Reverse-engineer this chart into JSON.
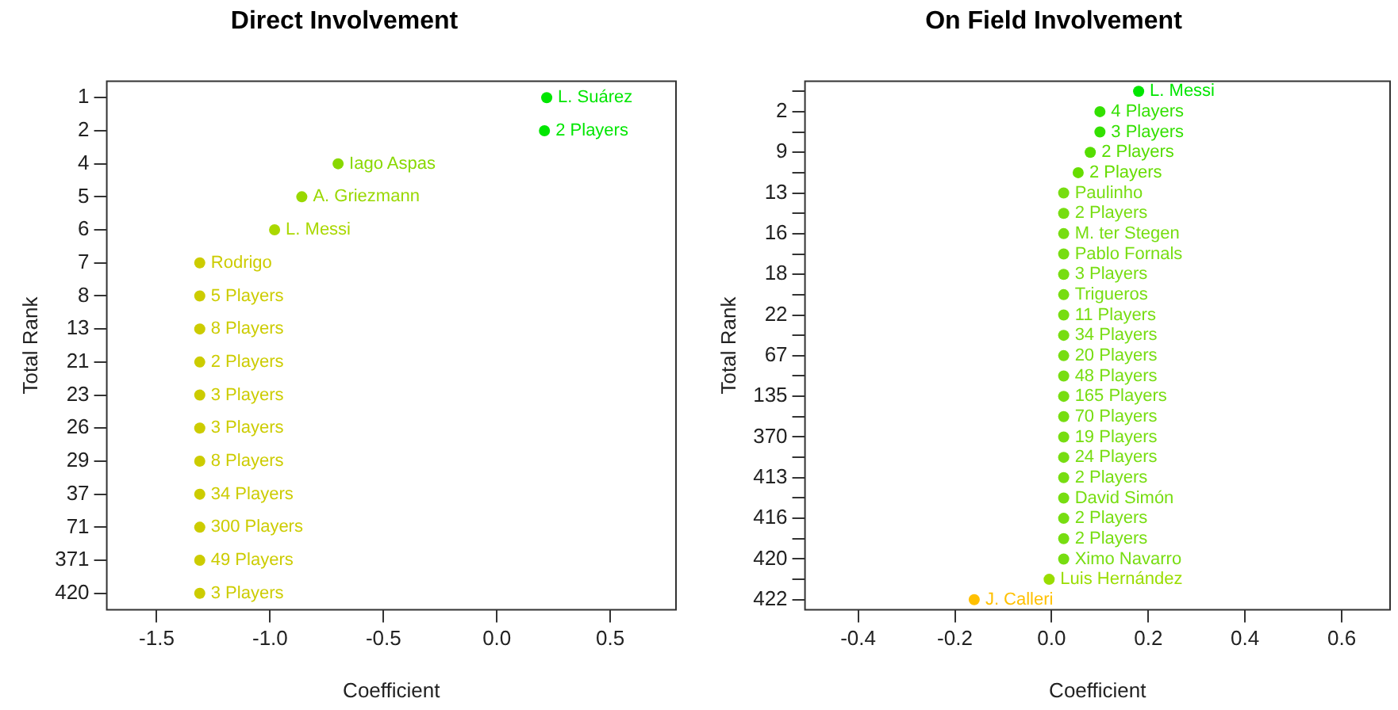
{
  "chart_data": [
    {
      "type": "scatter",
      "orientation": "horizontal",
      "title": "Direct Involvement",
      "xlabel": "Coefficient",
      "ylabel": "Total Rank",
      "marker": "circle",
      "grid": false,
      "legend": false,
      "categories": [
        "1",
        "2",
        "4",
        "5",
        "6",
        "7",
        "8",
        "13",
        "21",
        "23",
        "26",
        "29",
        "37",
        "71",
        "371",
        "420"
      ],
      "xlim": [
        -1.72,
        0.79
      ],
      "xticks": [
        {
          "value": -1.5,
          "label": "-1.5"
        },
        {
          "value": -1,
          "label": "-1.0"
        },
        {
          "value": -0.5,
          "label": "-0.5"
        },
        {
          "value": 0,
          "label": "0.0"
        },
        {
          "value": 0.5,
          "label": "0.5"
        }
      ],
      "series": [
        {
          "name": "L. Suárez",
          "color": "#00e600",
          "values": [
            0.22,
            null,
            null,
            null,
            null,
            null,
            null,
            null,
            null,
            null,
            null,
            null,
            null,
            null,
            null,
            null
          ]
        },
        {
          "name": "2 Players",
          "color": "#00e600",
          "values": [
            null,
            0.21,
            null,
            null,
            null,
            null,
            null,
            null,
            null,
            null,
            null,
            null,
            null,
            null,
            null,
            null
          ]
        },
        {
          "name": "Iago Aspas",
          "color": "#88d800",
          "values": [
            null,
            null,
            -0.7,
            null,
            null,
            null,
            null,
            null,
            null,
            null,
            null,
            null,
            null,
            null,
            null,
            null
          ]
        },
        {
          "name": "A. Griezmann",
          "color": "#99d800",
          "values": [
            null,
            null,
            null,
            -0.86,
            null,
            null,
            null,
            null,
            null,
            null,
            null,
            null,
            null,
            null,
            null,
            null
          ]
        },
        {
          "name": "L. Messi",
          "color": "#aad800",
          "values": [
            null,
            null,
            null,
            null,
            -0.98,
            null,
            null,
            null,
            null,
            null,
            null,
            null,
            null,
            null,
            null,
            null
          ]
        },
        {
          "name": "Rodrigo",
          "color": "#cccc00",
          "values": [
            null,
            null,
            null,
            null,
            null,
            -1.31,
            null,
            null,
            null,
            null,
            null,
            null,
            null,
            null,
            null,
            null
          ]
        },
        {
          "name": "5 Players",
          "color": "#cccc00",
          "values": [
            null,
            null,
            null,
            null,
            null,
            null,
            -1.31,
            null,
            null,
            null,
            null,
            null,
            null,
            null,
            null,
            null
          ]
        },
        {
          "name": "8 Players",
          "color": "#cccc00",
          "values": [
            null,
            null,
            null,
            null,
            null,
            null,
            null,
            -1.31,
            null,
            null,
            null,
            null,
            null,
            null,
            null,
            null
          ]
        },
        {
          "name": "2 Players",
          "color": "#cccc00",
          "values": [
            null,
            null,
            null,
            null,
            null,
            null,
            null,
            null,
            -1.31,
            null,
            null,
            null,
            null,
            null,
            null,
            null
          ]
        },
        {
          "name": "3 Players",
          "color": "#cccc00",
          "values": [
            null,
            null,
            null,
            null,
            null,
            null,
            null,
            null,
            null,
            -1.31,
            null,
            null,
            null,
            null,
            null,
            null
          ]
        },
        {
          "name": "3 Players",
          "color": "#cccc00",
          "values": [
            null,
            null,
            null,
            null,
            null,
            null,
            null,
            null,
            null,
            null,
            -1.31,
            null,
            null,
            null,
            null,
            null
          ]
        },
        {
          "name": "8 Players",
          "color": "#cccc00",
          "values": [
            null,
            null,
            null,
            null,
            null,
            null,
            null,
            null,
            null,
            null,
            null,
            -1.31,
            null,
            null,
            null,
            null
          ]
        },
        {
          "name": "34 Players",
          "color": "#cccc00",
          "values": [
            null,
            null,
            null,
            null,
            null,
            null,
            null,
            null,
            null,
            null,
            null,
            null,
            -1.31,
            null,
            null,
            null
          ]
        },
        {
          "name": "300 Players",
          "color": "#cccc00",
          "values": [
            null,
            null,
            null,
            null,
            null,
            null,
            null,
            null,
            null,
            null,
            null,
            null,
            null,
            -1.31,
            null,
            null
          ]
        },
        {
          "name": "49 Players",
          "color": "#cccc00",
          "values": [
            null,
            null,
            null,
            null,
            null,
            null,
            null,
            null,
            null,
            null,
            null,
            null,
            null,
            null,
            -1.31,
            null
          ]
        },
        {
          "name": "3 Players",
          "color": "#cccc00",
          "values": [
            null,
            null,
            null,
            null,
            null,
            null,
            null,
            null,
            null,
            null,
            null,
            null,
            null,
            null,
            null,
            -1.31
          ]
        }
      ]
    },
    {
      "type": "scatter",
      "orientation": "horizontal",
      "title": "On Field Involvement",
      "xlabel": "Coefficient",
      "ylabel": "Total Rank",
      "marker": "circle",
      "grid": false,
      "legend": false,
      "categories": [
        null,
        "2",
        null,
        "9",
        null,
        "13",
        null,
        "16",
        null,
        "18",
        null,
        "22",
        null,
        "67",
        null,
        "135",
        null,
        "370",
        null,
        "413",
        null,
        "416",
        null,
        "420",
        null,
        "422"
      ],
      "xlim": [
        -0.51,
        0.7
      ],
      "xticks": [
        -0.4,
        -0.2,
        {
          "value": 0,
          "label": "0.0"
        },
        0.2,
        0.4,
        0.6
      ],
      "series": [
        {
          "name": "L. Messi",
          "color": "#00e600",
          "values": [
            0.18,
            null,
            null,
            null,
            null,
            null,
            null,
            null,
            null,
            null,
            null,
            null,
            null,
            null,
            null,
            null,
            null,
            null,
            null,
            null,
            null,
            null,
            null,
            null,
            null,
            null
          ]
        },
        {
          "name": "4 Players",
          "color": "#33e000",
          "values": [
            null,
            0.1,
            null,
            null,
            null,
            null,
            null,
            null,
            null,
            null,
            null,
            null,
            null,
            null,
            null,
            null,
            null,
            null,
            null,
            null,
            null,
            null,
            null,
            null,
            null,
            null
          ]
        },
        {
          "name": "3 Players",
          "color": "#33e000",
          "values": [
            null,
            null,
            0.1,
            null,
            null,
            null,
            null,
            null,
            null,
            null,
            null,
            null,
            null,
            null,
            null,
            null,
            null,
            null,
            null,
            null,
            null,
            null,
            null,
            null,
            null,
            null
          ]
        },
        {
          "name": "2 Players",
          "color": "#55dd00",
          "values": [
            null,
            null,
            null,
            0.08,
            null,
            null,
            null,
            null,
            null,
            null,
            null,
            null,
            null,
            null,
            null,
            null,
            null,
            null,
            null,
            null,
            null,
            null,
            null,
            null,
            null,
            null
          ]
        },
        {
          "name": "2 Players",
          "color": "#66dd00",
          "values": [
            null,
            null,
            null,
            null,
            0.055,
            null,
            null,
            null,
            null,
            null,
            null,
            null,
            null,
            null,
            null,
            null,
            null,
            null,
            null,
            null,
            null,
            null,
            null,
            null,
            null,
            null
          ]
        },
        {
          "name": "Paulinho",
          "color": "#77dd11",
          "values": [
            null,
            null,
            null,
            null,
            null,
            0.025,
            null,
            null,
            null,
            null,
            null,
            null,
            null,
            null,
            null,
            null,
            null,
            null,
            null,
            null,
            null,
            null,
            null,
            null,
            null,
            null
          ]
        },
        {
          "name": "2 Players",
          "color": "#77dd11",
          "values": [
            null,
            null,
            null,
            null,
            null,
            null,
            0.025,
            null,
            null,
            null,
            null,
            null,
            null,
            null,
            null,
            null,
            null,
            null,
            null,
            null,
            null,
            null,
            null,
            null,
            null,
            null
          ]
        },
        {
          "name": "M. ter Stegen",
          "color": "#77dd11",
          "values": [
            null,
            null,
            null,
            null,
            null,
            null,
            null,
            0.025,
            null,
            null,
            null,
            null,
            null,
            null,
            null,
            null,
            null,
            null,
            null,
            null,
            null,
            null,
            null,
            null,
            null,
            null
          ]
        },
        {
          "name": "Pablo Fornals",
          "color": "#77dd11",
          "values": [
            null,
            null,
            null,
            null,
            null,
            null,
            null,
            null,
            0.025,
            null,
            null,
            null,
            null,
            null,
            null,
            null,
            null,
            null,
            null,
            null,
            null,
            null,
            null,
            null,
            null,
            null
          ]
        },
        {
          "name": "3 Players",
          "color": "#77dd11",
          "values": [
            null,
            null,
            null,
            null,
            null,
            null,
            null,
            null,
            null,
            0.025,
            null,
            null,
            null,
            null,
            null,
            null,
            null,
            null,
            null,
            null,
            null,
            null,
            null,
            null,
            null,
            null
          ]
        },
        {
          "name": "Trigueros",
          "color": "#77dd11",
          "values": [
            null,
            null,
            null,
            null,
            null,
            null,
            null,
            null,
            null,
            null,
            0.025,
            null,
            null,
            null,
            null,
            null,
            null,
            null,
            null,
            null,
            null,
            null,
            null,
            null,
            null,
            null
          ]
        },
        {
          "name": "11 Players",
          "color": "#77dd11",
          "values": [
            null,
            null,
            null,
            null,
            null,
            null,
            null,
            null,
            null,
            null,
            null,
            0.025,
            null,
            null,
            null,
            null,
            null,
            null,
            null,
            null,
            null,
            null,
            null,
            null,
            null,
            null
          ]
        },
        {
          "name": "34 Players",
          "color": "#77dd11",
          "values": [
            null,
            null,
            null,
            null,
            null,
            null,
            null,
            null,
            null,
            null,
            null,
            null,
            0.025,
            null,
            null,
            null,
            null,
            null,
            null,
            null,
            null,
            null,
            null,
            null,
            null,
            null
          ]
        },
        {
          "name": "20 Players",
          "color": "#77dd11",
          "values": [
            null,
            null,
            null,
            null,
            null,
            null,
            null,
            null,
            null,
            null,
            null,
            null,
            null,
            0.025,
            null,
            null,
            null,
            null,
            null,
            null,
            null,
            null,
            null,
            null,
            null,
            null
          ]
        },
        {
          "name": "48 Players",
          "color": "#77dd11",
          "values": [
            null,
            null,
            null,
            null,
            null,
            null,
            null,
            null,
            null,
            null,
            null,
            null,
            null,
            null,
            0.025,
            null,
            null,
            null,
            null,
            null,
            null,
            null,
            null,
            null,
            null,
            null
          ]
        },
        {
          "name": "165 Players",
          "color": "#77dd11",
          "values": [
            null,
            null,
            null,
            null,
            null,
            null,
            null,
            null,
            null,
            null,
            null,
            null,
            null,
            null,
            null,
            0.025,
            null,
            null,
            null,
            null,
            null,
            null,
            null,
            null,
            null,
            null
          ]
        },
        {
          "name": "70 Players",
          "color": "#77dd11",
          "values": [
            null,
            null,
            null,
            null,
            null,
            null,
            null,
            null,
            null,
            null,
            null,
            null,
            null,
            null,
            null,
            null,
            0.025,
            null,
            null,
            null,
            null,
            null,
            null,
            null,
            null,
            null
          ]
        },
        {
          "name": "19 Players",
          "color": "#77dd11",
          "values": [
            null,
            null,
            null,
            null,
            null,
            null,
            null,
            null,
            null,
            null,
            null,
            null,
            null,
            null,
            null,
            null,
            null,
            0.025,
            null,
            null,
            null,
            null,
            null,
            null,
            null,
            null
          ]
        },
        {
          "name": "24 Players",
          "color": "#77dd11",
          "values": [
            null,
            null,
            null,
            null,
            null,
            null,
            null,
            null,
            null,
            null,
            null,
            null,
            null,
            null,
            null,
            null,
            null,
            null,
            0.025,
            null,
            null,
            null,
            null,
            null,
            null,
            null
          ]
        },
        {
          "name": "2 Players",
          "color": "#77dd11",
          "values": [
            null,
            null,
            null,
            null,
            null,
            null,
            null,
            null,
            null,
            null,
            null,
            null,
            null,
            null,
            null,
            null,
            null,
            null,
            null,
            0.025,
            null,
            null,
            null,
            null,
            null,
            null
          ]
        },
        {
          "name": "David Simón",
          "color": "#77dd11",
          "values": [
            null,
            null,
            null,
            null,
            null,
            null,
            null,
            null,
            null,
            null,
            null,
            null,
            null,
            null,
            null,
            null,
            null,
            null,
            null,
            null,
            0.025,
            null,
            null,
            null,
            null,
            null
          ]
        },
        {
          "name": "2 Players",
          "color": "#77dd11",
          "values": [
            null,
            null,
            null,
            null,
            null,
            null,
            null,
            null,
            null,
            null,
            null,
            null,
            null,
            null,
            null,
            null,
            null,
            null,
            null,
            null,
            null,
            0.025,
            null,
            null,
            null,
            null
          ]
        },
        {
          "name": "2 Players",
          "color": "#77dd11",
          "values": [
            null,
            null,
            null,
            null,
            null,
            null,
            null,
            null,
            null,
            null,
            null,
            null,
            null,
            null,
            null,
            null,
            null,
            null,
            null,
            null,
            null,
            null,
            0.025,
            null,
            null,
            null
          ]
        },
        {
          "name": "Ximo Navarro",
          "color": "#77dd11",
          "values": [
            null,
            null,
            null,
            null,
            null,
            null,
            null,
            null,
            null,
            null,
            null,
            null,
            null,
            null,
            null,
            null,
            null,
            null,
            null,
            null,
            null,
            null,
            null,
            0.025,
            null,
            null
          ]
        },
        {
          "name": "Luis Hernández",
          "color": "#99dd00",
          "values": [
            null,
            null,
            null,
            null,
            null,
            null,
            null,
            null,
            null,
            null,
            null,
            null,
            null,
            null,
            null,
            null,
            null,
            null,
            null,
            null,
            null,
            null,
            null,
            null,
            -0.005,
            null
          ]
        },
        {
          "name": "J. Calleri",
          "color": "#ffc000",
          "values": [
            null,
            null,
            null,
            null,
            null,
            null,
            null,
            null,
            null,
            null,
            null,
            null,
            null,
            null,
            null,
            null,
            null,
            null,
            null,
            null,
            null,
            null,
            null,
            null,
            null,
            -0.16
          ]
        }
      ]
    }
  ]
}
